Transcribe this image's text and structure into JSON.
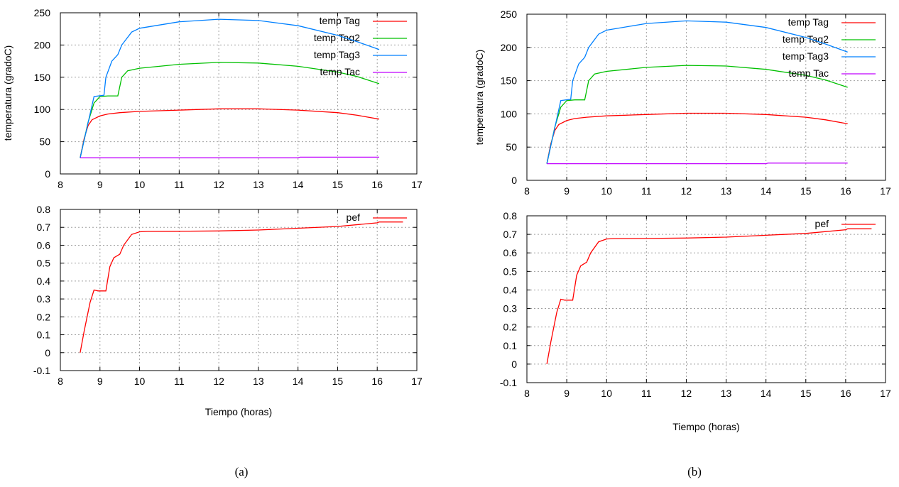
{
  "captions": [
    "(a)",
    "(b)"
  ],
  "colors": {
    "Tag": "#ff0000",
    "Tag2": "#00c000",
    "Tag3": "#0080ff",
    "Tac": "#c000ff",
    "pef": "#ff0000",
    "grid": "#a0a0a0"
  },
  "chart_data": [
    {
      "type": "line",
      "title": "",
      "xlabel": "",
      "ylabel": "temperatura (gradoC)",
      "xlim": [
        8,
        17
      ],
      "ylim": [
        0,
        250
      ],
      "xticks": [
        "8",
        "9",
        "10",
        "11",
        "12",
        "13",
        "14",
        "15",
        "16",
        "17"
      ],
      "yticks": [
        "0",
        "50",
        "100",
        "150",
        "200",
        "250"
      ],
      "grid": true,
      "legend_position": "top-right",
      "series": [
        {
          "name": "temp Tag",
          "color": "#ff0000",
          "x": [
            8.5,
            8.6,
            8.7,
            8.8,
            9.0,
            9.2,
            9.5,
            10.0,
            11.0,
            12.0,
            13.0,
            14.0,
            15.0,
            15.5,
            16.05
          ],
          "y": [
            25,
            55,
            75,
            84,
            90,
            93,
            95,
            97,
            99,
            101,
            101,
            99,
            95,
            91,
            85
          ]
        },
        {
          "name": "temp Tag2",
          "color": "#00c000",
          "x": [
            8.5,
            8.7,
            8.85,
            9.0,
            9.2,
            9.45,
            9.55,
            9.7,
            10.0,
            11.0,
            12.0,
            13.0,
            14.0,
            15.0,
            15.5,
            16.05
          ],
          "y": [
            25,
            80,
            110,
            120,
            121,
            121,
            150,
            160,
            164,
            170,
            173,
            172,
            167,
            158,
            151,
            140
          ]
        },
        {
          "name": "temp Tag3",
          "color": "#0080ff",
          "x": [
            8.5,
            8.85,
            9.1,
            9.15,
            9.3,
            9.45,
            9.55,
            9.8,
            10.0,
            11.0,
            12.0,
            13.0,
            14.0,
            15.0,
            15.5,
            16.05
          ],
          "y": [
            25,
            120,
            122,
            150,
            175,
            185,
            200,
            220,
            226,
            236,
            240,
            238,
            230,
            215,
            205,
            193
          ]
        },
        {
          "name": "temp Tac",
          "color": "#c000ff",
          "x": [
            8.5,
            14.0,
            14.05,
            16.05
          ],
          "y": [
            25,
            25,
            26,
            26
          ]
        }
      ]
    },
    {
      "type": "line",
      "title": "",
      "xlabel": "Tiempo (horas)",
      "ylabel": "",
      "xlim": [
        8,
        17
      ],
      "ylim": [
        -0.1,
        0.8
      ],
      "xticks": [
        "8",
        "9",
        "10",
        "11",
        "12",
        "13",
        "14",
        "15",
        "16",
        "17"
      ],
      "yticks": [
        "-0.1",
        "0",
        "0.1",
        "0.2",
        "0.3",
        "0.4",
        "0.5",
        "0.6",
        "0.7",
        "0.8"
      ],
      "grid": true,
      "legend_position": "top-right",
      "series": [
        {
          "name": "pef",
          "color": "#ff0000",
          "x": [
            8.5,
            8.6,
            8.75,
            8.85,
            8.95,
            9.15,
            9.25,
            9.35,
            9.5,
            9.6,
            9.8,
            10.0,
            10.2,
            11.0,
            12.0,
            13.0,
            14.0,
            15.0,
            16.0,
            16.05,
            16.65
          ],
          "y": [
            0.0,
            0.12,
            0.28,
            0.35,
            0.345,
            0.345,
            0.48,
            0.53,
            0.55,
            0.6,
            0.66,
            0.675,
            0.677,
            0.678,
            0.68,
            0.685,
            0.695,
            0.705,
            0.725,
            0.73,
            0.73
          ]
        }
      ]
    }
  ]
}
